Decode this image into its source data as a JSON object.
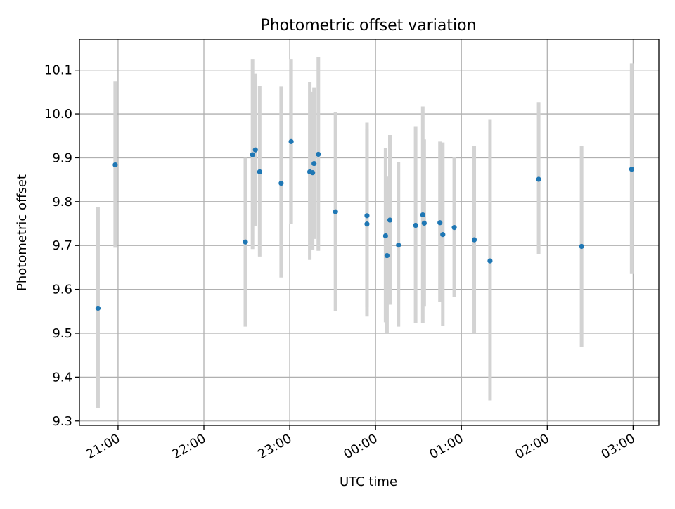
{
  "chart_data": {
    "type": "scatter",
    "title": "Photometric offset variation",
    "xlabel": "UTC time",
    "ylabel": "Photometric offset",
    "x_tick_labels": [
      "21:00",
      "22:00",
      "23:00",
      "00:00",
      "01:00",
      "02:00",
      "03:00"
    ],
    "x_ticks": [
      "21:00",
      "22:00",
      "23:00",
      "00:00",
      "01:00",
      "02:00",
      "03:00"
    ],
    "xlim": [
      "20:33",
      "03:18"
    ],
    "y_ticks": [
      9.3,
      9.4,
      9.5,
      9.6,
      9.7,
      9.8,
      9.9,
      10.0,
      10.1
    ],
    "y_tick_labels": [
      "9.3",
      "9.4",
      "9.5",
      "9.6",
      "9.7",
      "9.8",
      "9.9",
      "10.0",
      "10.1"
    ],
    "ylim": [
      9.29,
      10.17
    ],
    "grid": true,
    "marker_color": "#1f77b4",
    "errorbar_color": "#d3d3d3",
    "points": [
      {
        "x": "20:46",
        "y": 9.557,
        "err_low": 9.33,
        "err_high": 9.787
      },
      {
        "x": "20:58",
        "y": 9.884,
        "err_low": 9.695,
        "err_high": 10.075
      },
      {
        "x": "22:29",
        "y": 9.708,
        "err_low": 9.515,
        "err_high": 9.9
      },
      {
        "x": "22:34",
        "y": 9.907,
        "err_low": 9.692,
        "err_high": 10.125
      },
      {
        "x": "22:36",
        "y": 9.918,
        "err_low": 9.745,
        "err_high": 10.092
      },
      {
        "x": "22:39",
        "y": 9.868,
        "err_low": 9.675,
        "err_high": 10.063
      },
      {
        "x": "22:54",
        "y": 9.842,
        "err_low": 9.627,
        "err_high": 10.062
      },
      {
        "x": "23:01",
        "y": 9.937,
        "err_low": 9.75,
        "err_high": 10.125
      },
      {
        "x": "23:14",
        "y": 9.868,
        "err_low": 9.667,
        "err_high": 10.073
      },
      {
        "x": "23:16",
        "y": 9.866,
        "err_low": 9.69,
        "err_high": 10.05
      },
      {
        "x": "23:17",
        "y": 9.887,
        "err_low": 9.715,
        "err_high": 10.06
      },
      {
        "x": "23:20",
        "y": 9.908,
        "err_low": 9.688,
        "err_high": 10.13
      },
      {
        "x": "23:32",
        "y": 9.777,
        "err_low": 9.55,
        "err_high": 10.005
      },
      {
        "x": "23:54",
        "y": 9.768,
        "err_low": 9.56,
        "err_high": 9.965
      },
      {
        "x": "23:54",
        "y": 9.749,
        "err_low": 9.538,
        "err_high": 9.98
      },
      {
        "x": "00:07",
        "y": 9.722,
        "err_low": 9.525,
        "err_high": 9.922
      },
      {
        "x": "00:08",
        "y": 9.677,
        "err_low": 9.5,
        "err_high": 9.857
      },
      {
        "x": "00:10",
        "y": 9.758,
        "err_low": 9.565,
        "err_high": 9.952
      },
      {
        "x": "00:16",
        "y": 9.701,
        "err_low": 9.515,
        "err_high": 9.89
      },
      {
        "x": "00:28",
        "y": 9.746,
        "err_low": 9.523,
        "err_high": 9.972
      },
      {
        "x": "00:33",
        "y": 9.77,
        "err_low": 9.523,
        "err_high": 10.017
      },
      {
        "x": "00:34",
        "y": 9.751,
        "err_low": 9.562,
        "err_high": 9.942
      },
      {
        "x": "00:45",
        "y": 9.752,
        "err_low": 9.572,
        "err_high": 9.937
      },
      {
        "x": "00:47",
        "y": 9.725,
        "err_low": 9.517,
        "err_high": 9.935
      },
      {
        "x": "00:55",
        "y": 9.741,
        "err_low": 9.582,
        "err_high": 9.902
      },
      {
        "x": "01:09",
        "y": 9.713,
        "err_low": 9.5,
        "err_high": 9.927
      },
      {
        "x": "01:20",
        "y": 9.665,
        "err_low": 9.347,
        "err_high": 9.988
      },
      {
        "x": "01:54",
        "y": 9.851,
        "err_low": 9.68,
        "err_high": 10.027
      },
      {
        "x": "02:24",
        "y": 9.698,
        "err_low": 9.468,
        "err_high": 9.928
      },
      {
        "x": "02:59",
        "y": 9.874,
        "err_low": 9.635,
        "err_high": 10.115
      }
    ]
  }
}
